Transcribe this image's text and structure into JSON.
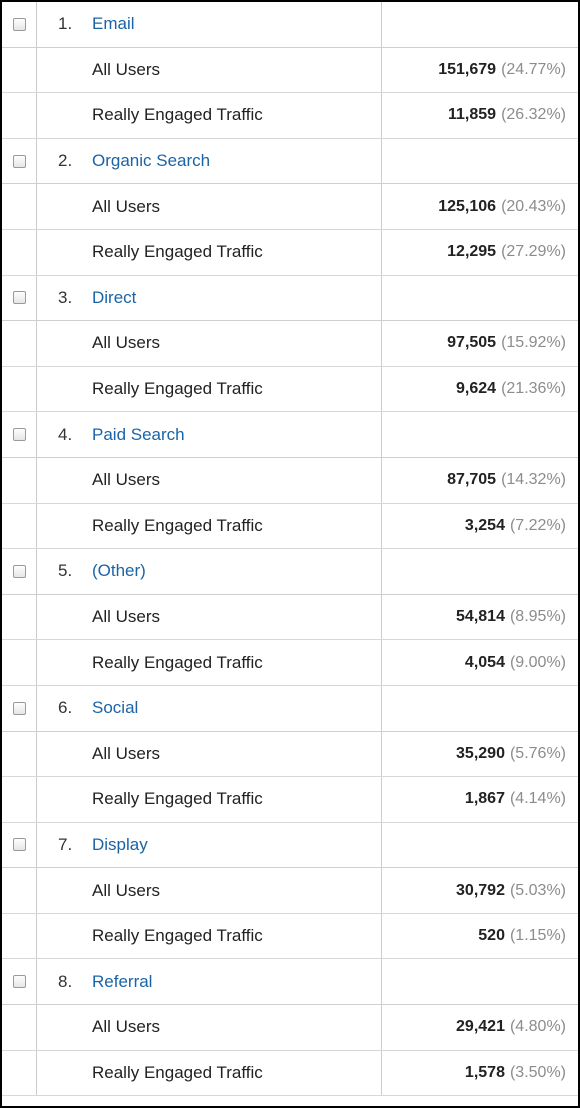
{
  "table": {
    "rows": [
      {
        "index": "1.",
        "channel": "Email",
        "segments": [
          {
            "label": "All Users",
            "value": "151,679",
            "percent": "(24.77%)"
          },
          {
            "label": "Really Engaged Traffic",
            "value": "11,859",
            "percent": "(26.32%)"
          }
        ]
      },
      {
        "index": "2.",
        "channel": "Organic Search",
        "segments": [
          {
            "label": "All Users",
            "value": "125,106",
            "percent": "(20.43%)"
          },
          {
            "label": "Really Engaged Traffic",
            "value": "12,295",
            "percent": "(27.29%)"
          }
        ]
      },
      {
        "index": "3.",
        "channel": "Direct",
        "segments": [
          {
            "label": "All Users",
            "value": "97,505",
            "percent": "(15.92%)"
          },
          {
            "label": "Really Engaged Traffic",
            "value": "9,624",
            "percent": "(21.36%)"
          }
        ]
      },
      {
        "index": "4.",
        "channel": "Paid Search",
        "segments": [
          {
            "label": "All Users",
            "value": "87,705",
            "percent": "(14.32%)"
          },
          {
            "label": "Really Engaged Traffic",
            "value": "3,254",
            "percent": "(7.22%)"
          }
        ]
      },
      {
        "index": "5.",
        "channel": "(Other)",
        "segments": [
          {
            "label": "All Users",
            "value": "54,814",
            "percent": "(8.95%)"
          },
          {
            "label": "Really Engaged Traffic",
            "value": "4,054",
            "percent": "(9.00%)"
          }
        ]
      },
      {
        "index": "6.",
        "channel": "Social",
        "segments": [
          {
            "label": "All Users",
            "value": "35,290",
            "percent": "(5.76%)"
          },
          {
            "label": "Really Engaged Traffic",
            "value": "1,867",
            "percent": "(4.14%)"
          }
        ]
      },
      {
        "index": "7.",
        "channel": "Display",
        "segments": [
          {
            "label": "All Users",
            "value": "30,792",
            "percent": "(5.03%)"
          },
          {
            "label": "Really Engaged Traffic",
            "value": "520",
            "percent": "(1.15%)"
          }
        ]
      },
      {
        "index": "8.",
        "channel": "Referral",
        "segments": [
          {
            "label": "All Users",
            "value": "29,421",
            "percent": "(4.80%)"
          },
          {
            "label": "Really Engaged Traffic",
            "value": "1,578",
            "percent": "(3.50%)"
          }
        ]
      }
    ]
  }
}
